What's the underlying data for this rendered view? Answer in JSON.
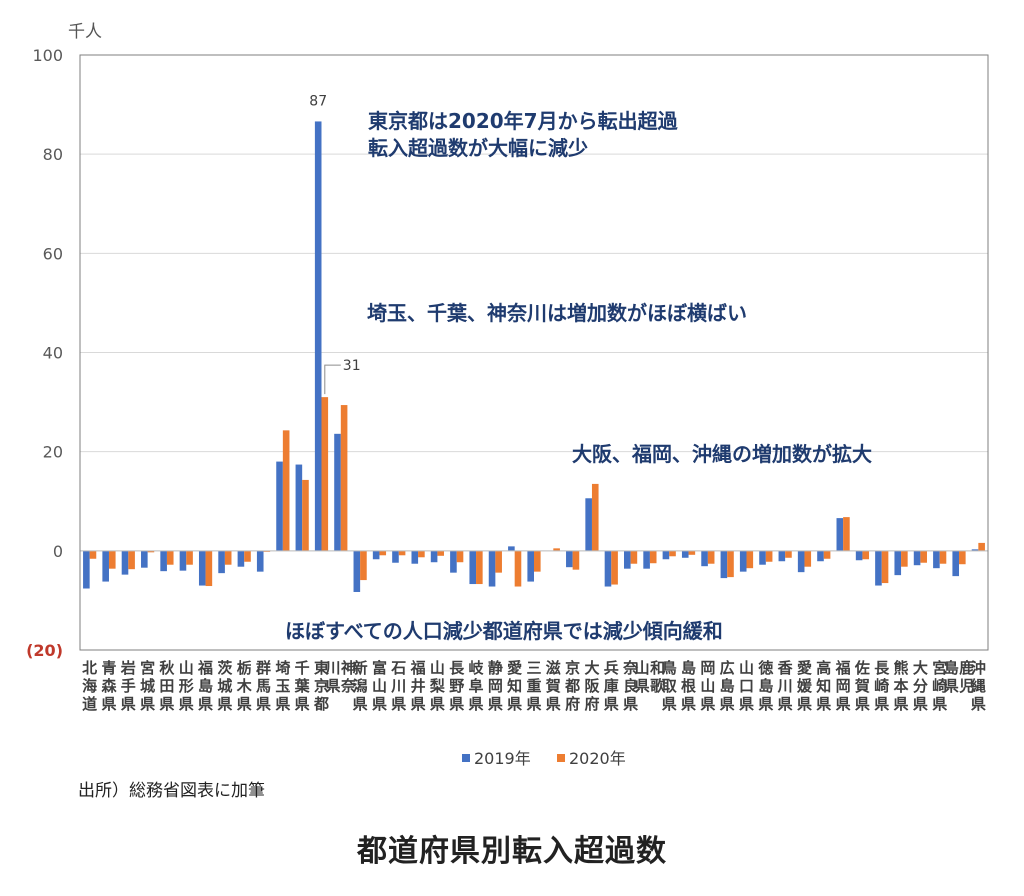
{
  "source_note": "出所）総務省図表に加筆",
  "caption": "都道府県別転入超過数",
  "chart_data": {
    "type": "bar",
    "unit_label": "千人",
    "ylim": [
      -20,
      100
    ],
    "yticks": [
      {
        "value": 100,
        "label": "100"
      },
      {
        "value": 80,
        "label": "80"
      },
      {
        "value": 60,
        "label": "60"
      },
      {
        "value": 40,
        "label": "40"
      },
      {
        "value": 20,
        "label": "20"
      },
      {
        "value": 0,
        "label": "0"
      },
      {
        "value": -20,
        "label": "(20)"
      }
    ],
    "grid": true,
    "legend_position": "bottom",
    "colors": {
      "2019": "#4472c4",
      "2020": "#ed7d31",
      "negative_tick": "#c0392b",
      "annotation": "#1f3b6f"
    },
    "categories": [
      "北海道",
      "青森県",
      "岩手県",
      "宮城県",
      "秋田県",
      "山形県",
      "福島県",
      "茨城県",
      "栃木県",
      "群馬県",
      "埼玉県",
      "千葉県",
      "東京都",
      "神奈川県",
      "新潟県",
      "富山県",
      "石川県",
      "福井県",
      "山梨県",
      "長野県",
      "岐阜県",
      "静岡県",
      "愛知県",
      "三重県",
      "滋賀県",
      "京都府",
      "大阪府",
      "兵庫県",
      "奈良県",
      "和歌山県",
      "鳥取県",
      "島根県",
      "岡山県",
      "広島県",
      "山口県",
      "徳島県",
      "香川県",
      "愛媛県",
      "高知県",
      "福岡県",
      "佐賀県",
      "長崎県",
      "熊本県",
      "大分県",
      "宮崎県",
      "鹿児島県",
      "沖縄県"
    ],
    "series": [
      {
        "name": "2019年",
        "values": [
          -7.6,
          -6.2,
          -4.8,
          -3.4,
          -4.1,
          -4.0,
          -7.0,
          -4.5,
          -3.2,
          -4.2,
          18.0,
          17.4,
          86.6,
          23.6,
          -8.3,
          -1.7,
          -2.4,
          -2.6,
          -2.3,
          -4.4,
          -6.7,
          -7.2,
          0.9,
          -6.2,
          0.0,
          -3.3,
          10.6,
          -7.2,
          -3.6,
          -3.6,
          -1.7,
          -1.4,
          -3.1,
          -5.5,
          -4.2,
          -2.8,
          -2.1,
          -4.3,
          -2.1,
          6.6,
          -1.9,
          -7.0,
          -4.9,
          -2.9,
          -3.5,
          -5.1,
          0.3
        ]
      },
      {
        "name": "2020年",
        "values": [
          -1.6,
          -3.6,
          -3.7,
          -0.3,
          -2.8,
          -2.8,
          -7.1,
          -2.8,
          -2.2,
          -0.2,
          24.3,
          14.3,
          31.0,
          29.4,
          -5.9,
          -0.9,
          -0.9,
          -1.3,
          -1.0,
          -2.3,
          -6.7,
          -4.4,
          -7.2,
          -4.2,
          0.5,
          -3.8,
          13.5,
          -6.8,
          -2.6,
          -2.5,
          -1.1,
          -0.8,
          -2.6,
          -5.3,
          -3.5,
          -2.2,
          -1.4,
          -3.2,
          -1.6,
          6.8,
          -1.7,
          -6.5,
          -3.2,
          -2.4,
          -2.6,
          -2.7,
          1.6
        ]
      }
    ],
    "data_labels": [
      {
        "category": "東京都",
        "series": "2019年",
        "text": "87"
      },
      {
        "category": "東京都",
        "series": "2020年",
        "text": "31"
      }
    ],
    "annotations": [
      {
        "id": "tokyo",
        "lines": [
          "東京都は2020年7月から転出超過",
          "転入超過数が大幅に減少"
        ]
      },
      {
        "id": "kanto",
        "lines": [
          "埼玉、千葉、神奈川は増加数がほぼ横ばい"
        ]
      },
      {
        "id": "west",
        "lines": [
          "大阪、福岡、沖縄の増加数が拡大"
        ]
      },
      {
        "id": "decline",
        "lines": [
          "ほぼすべての人口減少都道府県では減少傾向緩和"
        ]
      }
    ]
  }
}
